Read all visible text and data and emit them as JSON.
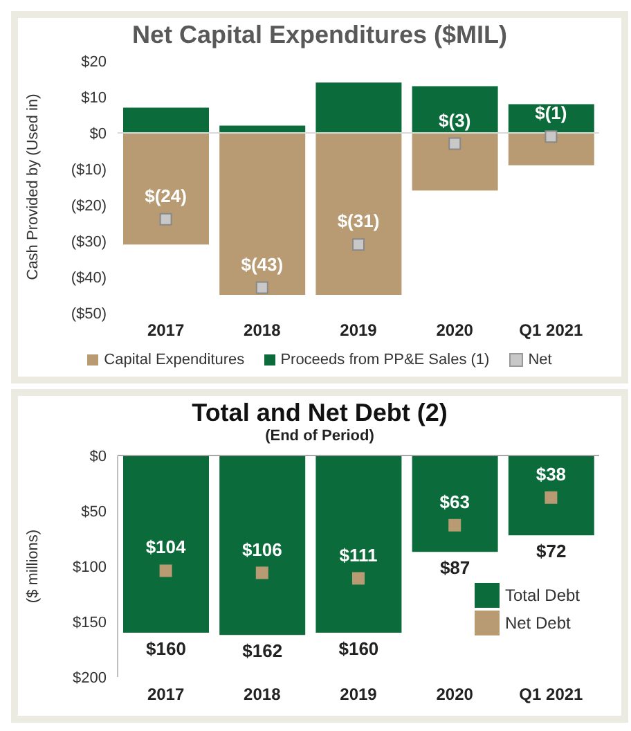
{
  "chart_data": [
    {
      "type": "bar",
      "title": "Net Capital Expenditures ($MIL)",
      "ylabel": "Cash Provided by (Used in)",
      "categories": [
        "2017",
        "2018",
        "2019",
        "2020",
        "Q1 2021"
      ],
      "stacked": true,
      "series": [
        {
          "name": "Capital Expenditures",
          "color": "#b89b72",
          "values": [
            -31,
            -45,
            -45,
            -16,
            -9
          ]
        },
        {
          "name": "Proceeds from PP&E Sales (1)",
          "color": "#0b6b3b",
          "values": [
            7,
            2,
            14,
            13,
            8
          ]
        },
        {
          "name": "Net",
          "type": "scatter",
          "color": "#c8c8c8",
          "values": [
            -24,
            -43,
            -31,
            -3,
            -1
          ],
          "value_labels": [
            "$(24)",
            "$(43)",
            "$(31)",
            "$(3)",
            "$(1)"
          ]
        }
      ],
      "ylim": [
        -50,
        20
      ],
      "yticks": [
        {
          "value": 20,
          "label": "$20"
        },
        {
          "value": 10,
          "label": "$10"
        },
        {
          "value": 0,
          "label": "$0"
        },
        {
          "value": -10,
          "label": "($10)"
        },
        {
          "value": -20,
          "label": "($20)"
        },
        {
          "value": -30,
          "label": "($30)"
        },
        {
          "value": -40,
          "label": "($40)"
        },
        {
          "value": -50,
          "label": "($50)"
        }
      ],
      "ref_lines": [
        {
          "axis": "y",
          "value": 0,
          "color": "#d9d9d9"
        }
      ],
      "marker": "square",
      "legend": "bottom",
      "grid": false
    },
    {
      "type": "bar",
      "title": "Total and Net Debt (2)",
      "subtitle": "(End of Period)",
      "ylabel": "($ millions)",
      "categories": [
        "2017",
        "2018",
        "2019",
        "2020",
        "Q1 2021"
      ],
      "series": [
        {
          "name": "Total Debt",
          "color": "#0b6b3b",
          "values": [
            160,
            162,
            160,
            87,
            72
          ],
          "value_labels": [
            "$160",
            "$162",
            "$160",
            "$87",
            "$72"
          ]
        },
        {
          "name": "Net Debt",
          "type": "scatter",
          "color": "#b89b72",
          "values": [
            104,
            106,
            111,
            63,
            38
          ],
          "value_labels": [
            "$104",
            "$106",
            "$111",
            "$63",
            "$38"
          ]
        }
      ],
      "ylim": [
        200,
        0
      ],
      "yticks": [
        {
          "value": 0,
          "label": "$0"
        },
        {
          "value": 50,
          "label": "$50"
        },
        {
          "value": 100,
          "label": "$100"
        },
        {
          "value": 150,
          "label": "$150"
        },
        {
          "value": 200,
          "label": "$200"
        }
      ],
      "ref_lines": [
        {
          "axis": "y",
          "value": 0,
          "color": "#a6a6a6"
        }
      ],
      "marker": "square",
      "legend": "bottom right",
      "grid": false
    }
  ]
}
